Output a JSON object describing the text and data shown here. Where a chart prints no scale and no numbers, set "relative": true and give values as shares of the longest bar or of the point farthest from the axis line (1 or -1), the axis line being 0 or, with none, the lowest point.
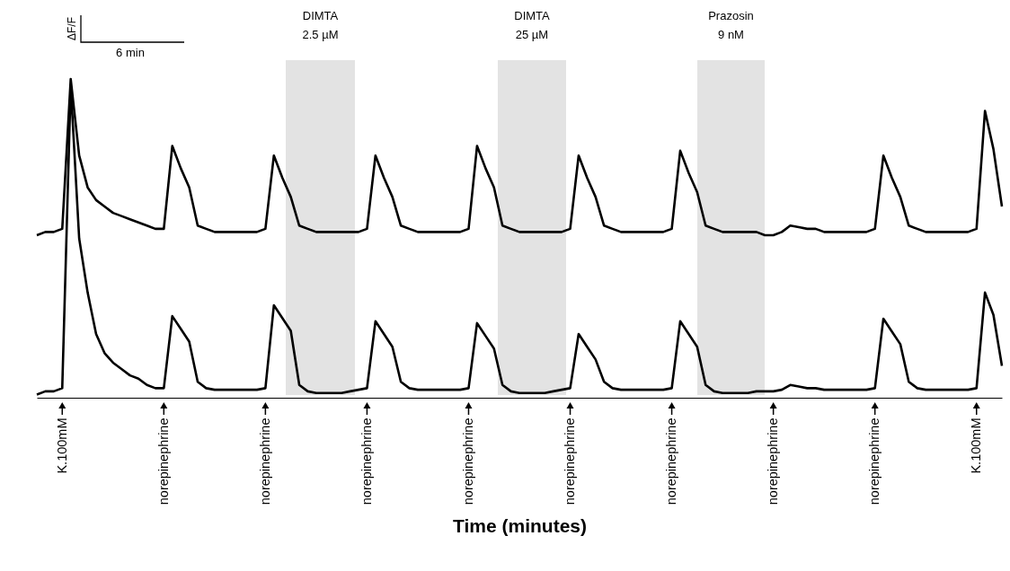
{
  "chart_data": {
    "type": "line",
    "relative": true,
    "xlabel": "Time (minutes)",
    "categories": [
      null,
      null,
      null,
      "K.100mM",
      null,
      null,
      null,
      null,
      null,
      null,
      null,
      null,
      null,
      null,
      null,
      "norepinephrine",
      null,
      null,
      null,
      null,
      null,
      null,
      null,
      null,
      null,
      null,
      null,
      "norepinephrine",
      null,
      null,
      null,
      null,
      null,
      null,
      null,
      null,
      null,
      null,
      null,
      "norepinephrine",
      null,
      null,
      null,
      null,
      null,
      null,
      null,
      null,
      null,
      null,
      null,
      "norepinephrine",
      null,
      null,
      null,
      null,
      null,
      null,
      null,
      null,
      null,
      null,
      null,
      "norepinephrine",
      null,
      null,
      null,
      null,
      null,
      null,
      null,
      null,
      null,
      null,
      null,
      "norepinephrine",
      null,
      null,
      null,
      null,
      null,
      null,
      null,
      null,
      null,
      null,
      null,
      "norepinephrine",
      null,
      null,
      null,
      null,
      null,
      null,
      null,
      null,
      null,
      null,
      null,
      "norepinephrine",
      null,
      null,
      null,
      null,
      null,
      null,
      null,
      null,
      null,
      null,
      null,
      "K.100mM",
      null,
      null,
      null
    ],
    "series": [
      {
        "color": "#000000",
        "values": [
          0.51,
          0.52,
          0.52,
          0.53,
          1.0,
          0.76,
          0.66,
          0.62,
          0.6,
          0.58,
          0.57,
          0.56,
          0.55,
          0.54,
          0.53,
          0.53,
          0.79,
          0.72,
          0.66,
          0.54,
          0.53,
          0.52,
          0.52,
          0.52,
          0.52,
          0.52,
          0.52,
          0.53,
          0.76,
          0.69,
          0.63,
          0.54,
          0.53,
          0.52,
          0.52,
          0.52,
          0.52,
          0.52,
          0.52,
          0.53,
          0.76,
          0.69,
          0.63,
          0.54,
          0.53,
          0.52,
          0.52,
          0.52,
          0.52,
          0.52,
          0.52,
          0.53,
          0.79,
          0.72,
          0.66,
          0.54,
          0.53,
          0.52,
          0.52,
          0.52,
          0.52,
          0.52,
          0.52,
          0.53,
          0.76,
          0.69,
          0.63,
          0.54,
          0.53,
          0.52,
          0.52,
          0.52,
          0.52,
          0.52,
          0.52,
          0.53,
          0.775,
          0.705,
          0.645,
          0.54,
          0.53,
          0.52,
          0.52,
          0.52,
          0.52,
          0.52,
          0.51,
          0.51,
          0.52,
          0.54,
          0.535,
          0.53,
          0.53,
          0.52,
          0.52,
          0.52,
          0.52,
          0.52,
          0.52,
          0.53,
          0.76,
          0.69,
          0.63,
          0.54,
          0.53,
          0.52,
          0.52,
          0.52,
          0.52,
          0.52,
          0.52,
          0.53,
          0.9,
          0.78,
          0.6
        ]
      },
      {
        "color": "#000000",
        "values": [
          0.01,
          0.02,
          0.02,
          0.03,
          0.98,
          0.5,
          0.33,
          0.2,
          0.14,
          0.11,
          0.09,
          0.07,
          0.06,
          0.04,
          0.03,
          0.03,
          0.256,
          0.216,
          0.176,
          0.05,
          0.03,
          0.025,
          0.025,
          0.025,
          0.025,
          0.025,
          0.025,
          0.03,
          0.29,
          0.25,
          0.21,
          0.04,
          0.02,
          0.015,
          0.015,
          0.015,
          0.015,
          0.02,
          0.025,
          0.03,
          0.24,
          0.2,
          0.16,
          0.05,
          0.03,
          0.025,
          0.025,
          0.025,
          0.025,
          0.025,
          0.025,
          0.03,
          0.234,
          0.194,
          0.154,
          0.04,
          0.02,
          0.015,
          0.015,
          0.015,
          0.015,
          0.02,
          0.025,
          0.03,
          0.2,
          0.16,
          0.12,
          0.05,
          0.03,
          0.025,
          0.025,
          0.025,
          0.025,
          0.025,
          0.025,
          0.03,
          0.24,
          0.2,
          0.16,
          0.04,
          0.02,
          0.015,
          0.015,
          0.015,
          0.015,
          0.02,
          0.02,
          0.02,
          0.025,
          0.04,
          0.035,
          0.03,
          0.03,
          0.025,
          0.025,
          0.025,
          0.025,
          0.025,
          0.025,
          0.03,
          0.248,
          0.208,
          0.168,
          0.05,
          0.03,
          0.025,
          0.025,
          0.025,
          0.025,
          0.025,
          0.025,
          0.03,
          0.33,
          0.26,
          0.1
        ]
      }
    ],
    "annotations": [
      "ΔF/F",
      "6 min",
      "DIMTA\n2.5 µM",
      "DIMTA\n25 µM",
      "Prazosin\n9 nM"
    ]
  }
}
